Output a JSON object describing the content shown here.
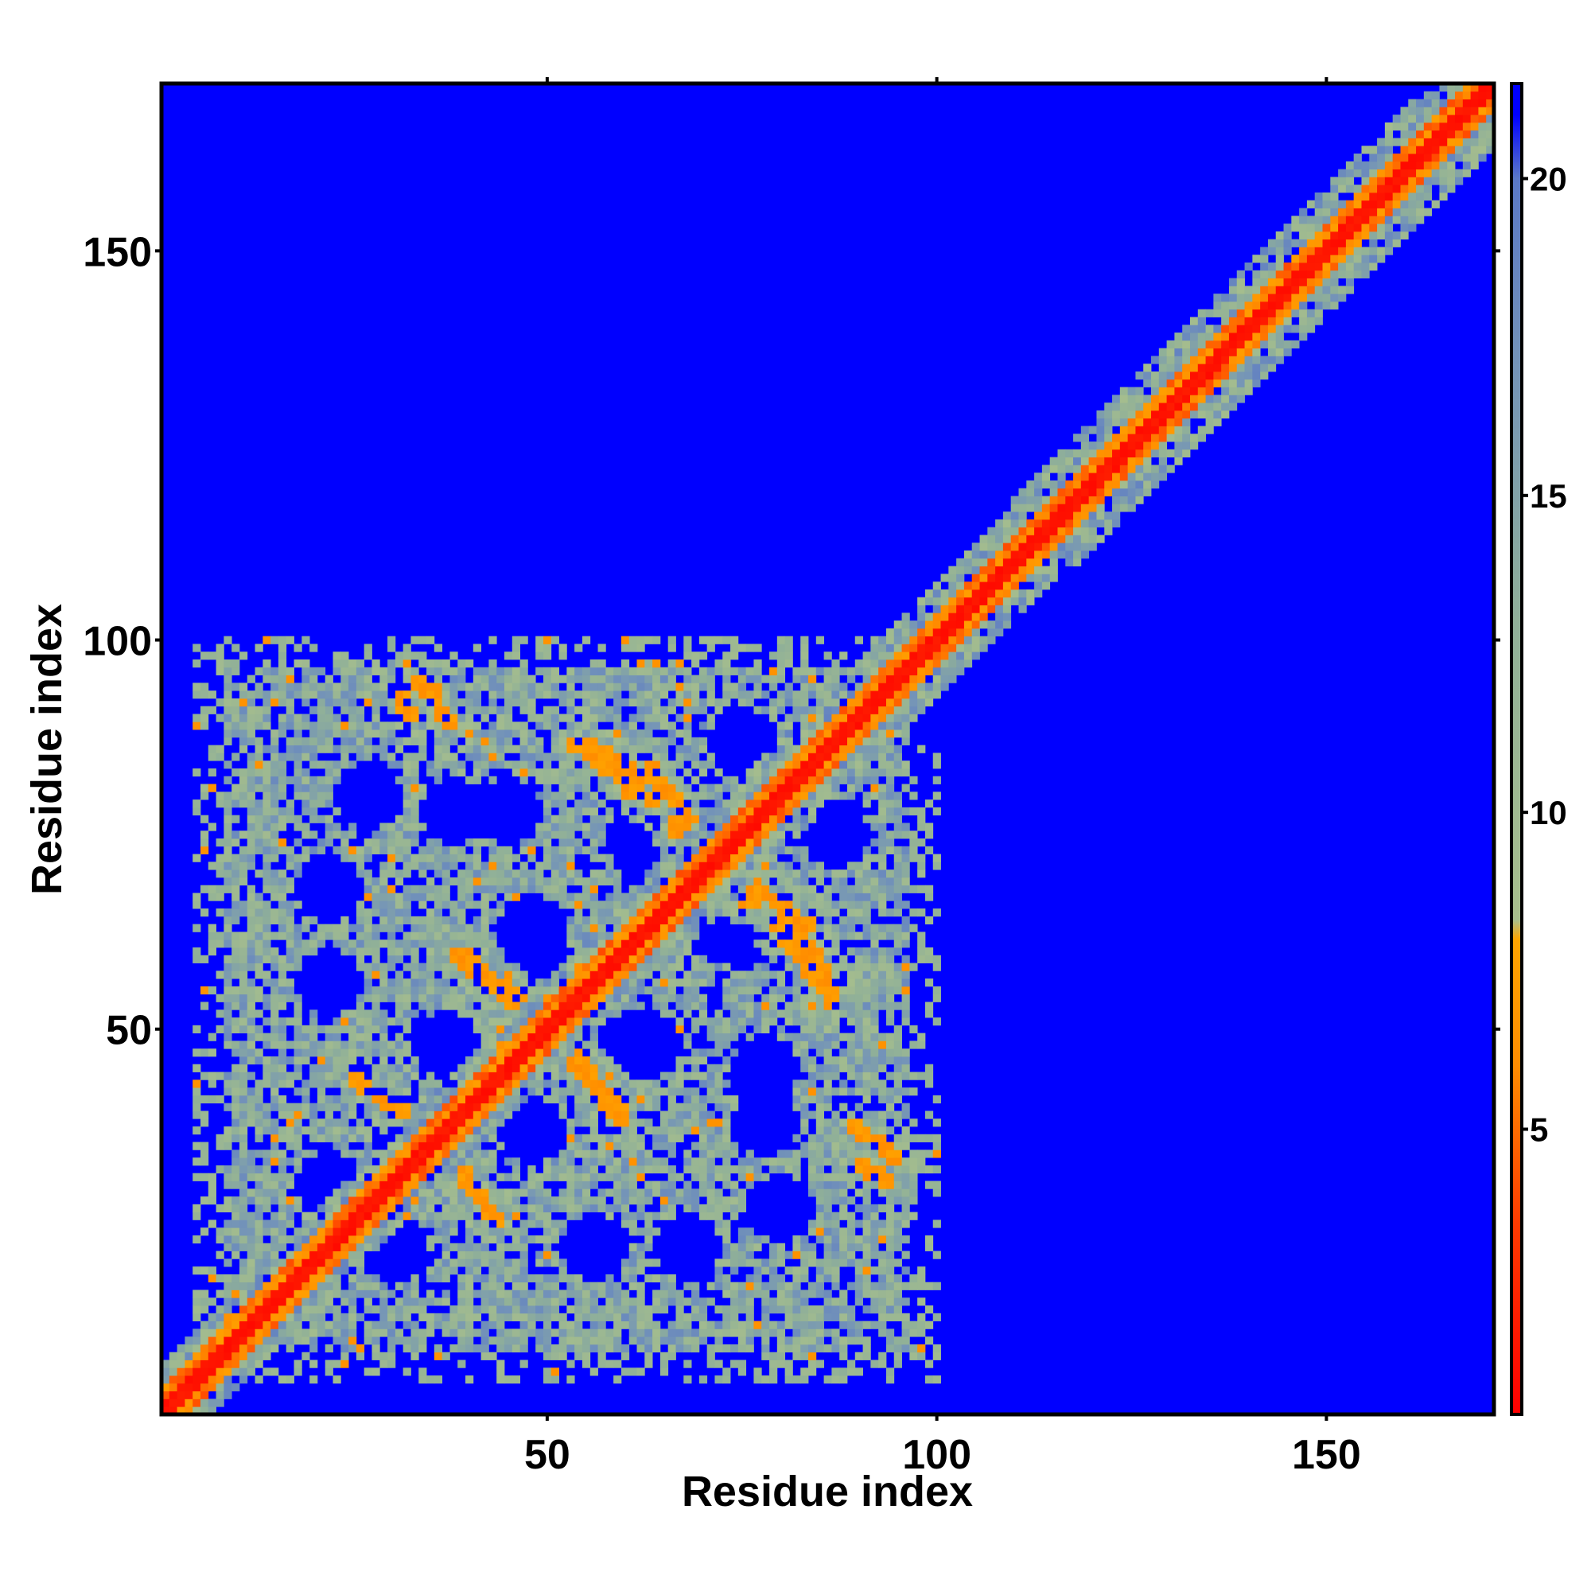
{
  "chart_data": {
    "type": "heatmap",
    "title": "",
    "xlabel": "Residue index",
    "ylabel": "Residue index",
    "xlim": [
      1,
      171
    ],
    "ylim": [
      1,
      171
    ],
    "n_residues": 171,
    "x_ticks": [
      50,
      100,
      150
    ],
    "y_ticks": [
      50,
      100,
      150
    ],
    "x_tick_labels": [
      "50",
      "100",
      "150"
    ],
    "y_tick_labels": [
      "50",
      "100",
      "150"
    ],
    "colorbar": {
      "range": [
        0.5,
        21.5
      ],
      "ticks": [
        5,
        10,
        15,
        20
      ],
      "tick_labels": [
        "5",
        "10",
        "15",
        "20"
      ],
      "stops": [
        {
          "value": 0.5,
          "color": "#ff0000"
        },
        {
          "value": 3.5,
          "color": "#ff3a00"
        },
        {
          "value": 6.0,
          "color": "#ff8c00"
        },
        {
          "value": 8.0,
          "color": "#ffa500"
        },
        {
          "value": 8.3,
          "color": "#a8bf8c"
        },
        {
          "value": 13.0,
          "color": "#90b098"
        },
        {
          "value": 17.0,
          "color": "#7494b8"
        },
        {
          "value": 20.0,
          "color": "#5a78c6"
        },
        {
          "value": 21.0,
          "color": "#0000ff"
        },
        {
          "value": 21.5,
          "color": "#0000ff"
        }
      ]
    },
    "background_value": 21,
    "background_color": "#0000ff",
    "diagonal_band": {
      "core_halfwidth": 1,
      "mid_halfwidth": 3,
      "outer_halfwidth_start": 6,
      "outer_halfwidth_end": 9
    },
    "contact_region": {
      "x_range": [
        5,
        100
      ],
      "y_range": [
        5,
        100
      ]
    },
    "off_diagonal_contacts": [
      {
        "x0": 33,
        "y0": 95,
        "x1": 38,
        "y1": 89,
        "value": 6
      },
      {
        "x0": 53,
        "y0": 87,
        "x1": 64,
        "y1": 79,
        "value": 6
      },
      {
        "x0": 66,
        "y0": 77,
        "x1": 70,
        "y1": 70,
        "value": 6
      },
      {
        "x0": 73,
        "y0": 71,
        "x1": 84,
        "y1": 63,
        "value": 6
      },
      {
        "x0": 82,
        "y0": 63,
        "x1": 87,
        "y1": 55,
        "value": 6
      },
      {
        "x0": 38,
        "y0": 60,
        "x1": 46,
        "y1": 53,
        "value": 6
      },
      {
        "x0": 52,
        "y0": 48,
        "x1": 60,
        "y1": 39,
        "value": 6
      },
      {
        "x0": 26,
        "y0": 43,
        "x1": 35,
        "y1": 37,
        "value": 6
      },
      {
        "x0": 37,
        "y0": 34,
        "x1": 44,
        "y1": 25,
        "value": 6
      },
      {
        "x0": 90,
        "y0": 33,
        "x1": 94,
        "y1": 30,
        "value": 6
      },
      {
        "x0": 13,
        "y0": 18,
        "x1": 20,
        "y1": 16,
        "value": 6
      }
    ],
    "contact_holes": [
      {
        "x": 48,
        "y": 63
      },
      {
        "x": 61,
        "y": 48
      },
      {
        "x": 48,
        "y": 37
      },
      {
        "x": 62,
        "y": 75
      },
      {
        "x": 72,
        "y": 63
      },
      {
        "x": 38,
        "y": 78
      },
      {
        "x": 78,
        "y": 45
      },
      {
        "x": 22,
        "y": 30
      },
      {
        "x": 56,
        "y": 22
      },
      {
        "x": 80,
        "y": 27
      },
      {
        "x": 22,
        "y": 68
      },
      {
        "x": 87,
        "y": 75
      }
    ]
  }
}
